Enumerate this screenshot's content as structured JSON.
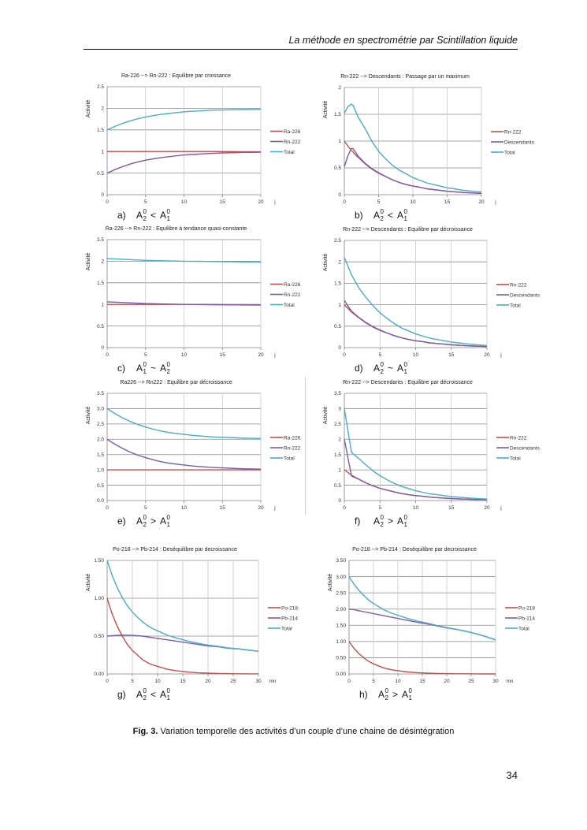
{
  "page": {
    "header": "La méthode en spectrométrie par Scintillation liquide",
    "caption_bold": "Fig. 3.",
    "caption_text": " Variation temporelle des activités d’un couple d’une chaine de désintégration",
    "page_number": "34"
  },
  "colors": {
    "parent": "#c0504d",
    "daughter": "#7d5ba6",
    "total": "#4bacc6",
    "grid": "#b0b0b0",
    "axis": "#7f7f7f"
  },
  "chart_data": [
    {
      "id": "a",
      "type": "line",
      "title": "Ra-226 --> Rn-222 : Equilibre par croissance",
      "ylabel": "Activité",
      "xlabel": "j",
      "xlim": [
        0,
        20
      ],
      "ylim": [
        0,
        2.5
      ],
      "xticks": [
        "0",
        "5",
        "10",
        "15",
        "20"
      ],
      "yticks": [
        "0",
        "0.5",
        "1",
        "1.5",
        "2",
        "2.5"
      ],
      "legend_position": "right",
      "subcaption": {
        "letter": "a)",
        "lhs_sub": "2",
        "op": "<",
        "rhs_sub": "1"
      },
      "x": [
        0,
        1,
        2,
        3,
        4,
        5,
        6,
        7,
        8,
        9,
        10,
        11,
        12,
        13,
        14,
        15,
        16,
        17,
        18,
        19,
        20
      ],
      "series": [
        {
          "name": "Ra-226",
          "role": "parent",
          "values": [
            1,
            1,
            1,
            1,
            1,
            1,
            1,
            1,
            1,
            1,
            1,
            1,
            1,
            1,
            1,
            0.995,
            0.995,
            0.99,
            0.99,
            0.99,
            0.99
          ]
        },
        {
          "name": "Rn-222",
          "role": "daughter",
          "values": [
            0.5,
            0.58,
            0.65,
            0.71,
            0.76,
            0.8,
            0.83,
            0.86,
            0.88,
            0.9,
            0.92,
            0.93,
            0.94,
            0.95,
            0.96,
            0.965,
            0.97,
            0.975,
            0.98,
            0.98,
            0.985
          ]
        },
        {
          "name": "Total",
          "role": "total",
          "values": [
            1.5,
            1.58,
            1.65,
            1.71,
            1.76,
            1.8,
            1.83,
            1.86,
            1.88,
            1.9,
            1.92,
            1.93,
            1.94,
            1.95,
            1.96,
            1.96,
            1.965,
            1.97,
            1.97,
            1.975,
            1.975
          ]
        }
      ]
    },
    {
      "id": "b",
      "type": "line",
      "title": "Rn-222 --> Descendants : Passage par un maximum",
      "ylabel": "Activité",
      "xlabel": "j",
      "xlim": [
        0,
        20
      ],
      "ylim": [
        0,
        2
      ],
      "xticks": [
        "0",
        "5",
        "10",
        "15",
        "20"
      ],
      "yticks": [
        "0",
        "0.5",
        "1",
        "1.5",
        "2"
      ],
      "legend_position": "right",
      "subcaption": {
        "letter": "b)",
        "lhs_sub": "2",
        "op": "<",
        "rhs_sub": "1"
      },
      "x": [
        0,
        0.5,
        1,
        1.25,
        1.5,
        2,
        3,
        4,
        5,
        6,
        7,
        8,
        9,
        10,
        11,
        12,
        13,
        14,
        15,
        16,
        17,
        18,
        19,
        20
      ],
      "series": [
        {
          "name": "Rn-222",
          "role": "parent",
          "values": [
            1,
            0.91,
            0.83,
            0.8,
            0.76,
            0.7,
            0.58,
            0.48,
            0.4,
            0.34,
            0.28,
            0.23,
            0.19,
            0.16,
            0.14,
            0.11,
            0.095,
            0.08,
            0.065,
            0.055,
            0.045,
            0.037,
            0.031,
            0.026
          ]
        },
        {
          "name": "Descendants",
          "role": "daughter",
          "values": [
            0.52,
            0.72,
            0.86,
            0.86,
            0.82,
            0.72,
            0.59,
            0.49,
            0.41,
            0.34,
            0.28,
            0.23,
            0.19,
            0.16,
            0.14,
            0.11,
            0.095,
            0.08,
            0.065,
            0.055,
            0.045,
            0.037,
            0.031,
            0.026
          ]
        },
        {
          "name": "Total",
          "role": "total",
          "values": [
            1.52,
            1.64,
            1.69,
            1.67,
            1.6,
            1.45,
            1.24,
            1.0,
            0.81,
            0.67,
            0.55,
            0.46,
            0.39,
            0.32,
            0.27,
            0.22,
            0.19,
            0.16,
            0.13,
            0.11,
            0.09,
            0.075,
            0.06,
            0.05
          ]
        }
      ]
    },
    {
      "id": "c",
      "type": "line",
      "title": "Ra-226 --> Rn-222 : Equilibre à tendance quasi-constante",
      "ylabel": "Activité",
      "xlabel": "j",
      "xlim": [
        0,
        20
      ],
      "ylim": [
        0,
        2.5
      ],
      "xticks": [
        "0",
        "5",
        "10",
        "15",
        "20"
      ],
      "yticks": [
        "0",
        "0.5",
        "1",
        "1.5",
        "2",
        "2.5"
      ],
      "legend_position": "right",
      "subcaption": {
        "letter": "c)",
        "lhs_sub": "1",
        "op": "~",
        "rhs_sub": "2"
      },
      "x": [
        0,
        5,
        10,
        15,
        20
      ],
      "series": [
        {
          "name": "Ra-226",
          "role": "parent",
          "values": [
            1,
            1,
            1,
            0.995,
            0.99
          ]
        },
        {
          "name": "Rn-222",
          "role": "daughter",
          "values": [
            1.06,
            1.02,
            1.0,
            0.99,
            0.985
          ]
        },
        {
          "name": "Total",
          "role": "total",
          "values": [
            2.06,
            2.02,
            2.0,
            1.99,
            1.98
          ]
        }
      ]
    },
    {
      "id": "d",
      "type": "line",
      "title": "Rn-222 --> Descendants : Equilibre par décroissance",
      "ylabel": "Activité",
      "xlabel": "j",
      "xlim": [
        0,
        20
      ],
      "ylim": [
        0,
        2.5
      ],
      "xticks": [
        "0",
        "5",
        "10",
        "15",
        "20"
      ],
      "yticks": [
        "0",
        "0.5",
        "1",
        "1.5",
        "2",
        "2.5"
      ],
      "legend_position": "right",
      "subcaption": {
        "letter": "d)",
        "lhs_sub": "2",
        "op": "~",
        "rhs_sub": "1"
      },
      "x": [
        0,
        1,
        2,
        3,
        4,
        5,
        6,
        7,
        8,
        9,
        10,
        11,
        12,
        13,
        14,
        15,
        16,
        17,
        18,
        19,
        20
      ],
      "series": [
        {
          "name": "Rn-222",
          "role": "parent",
          "values": [
            1,
            0.83,
            0.7,
            0.58,
            0.48,
            0.4,
            0.34,
            0.28,
            0.23,
            0.19,
            0.16,
            0.14,
            0.11,
            0.095,
            0.08,
            0.065,
            0.055,
            0.045,
            0.037,
            0.031,
            0.026
          ]
        },
        {
          "name": "Descendants",
          "role": "daughter",
          "values": [
            1.1,
            0.85,
            0.71,
            0.59,
            0.49,
            0.41,
            0.34,
            0.28,
            0.23,
            0.19,
            0.16,
            0.14,
            0.11,
            0.095,
            0.08,
            0.065,
            0.055,
            0.045,
            0.037,
            0.031,
            0.026
          ]
        },
        {
          "name": "Total",
          "role": "total",
          "values": [
            2.1,
            1.7,
            1.4,
            1.18,
            0.98,
            0.81,
            0.68,
            0.56,
            0.46,
            0.39,
            0.32,
            0.27,
            0.22,
            0.19,
            0.16,
            0.13,
            0.11,
            0.09,
            0.075,
            0.06,
            0.05
          ]
        }
      ]
    },
    {
      "id": "e",
      "type": "line",
      "title": "Ra226 --> Rn222 : Equilibre par décroissance",
      "ylabel": "Activité",
      "xlabel": "j",
      "xlim": [
        0,
        20
      ],
      "ylim": [
        0,
        3.5
      ],
      "xticks": [
        "0",
        "5",
        "10",
        "15",
        "20"
      ],
      "yticks": [
        "0.0",
        "0.5",
        "1.0",
        "1.5",
        "2.0",
        "2.5",
        "3.0",
        "3.5"
      ],
      "legend_position": "right",
      "subcaption": {
        "letter": "e)",
        "lhs_sub": "2",
        "op": ">",
        "rhs_sub": "1"
      },
      "x": [
        0,
        1,
        2,
        3,
        4,
        5,
        6,
        7,
        8,
        9,
        10,
        11,
        12,
        13,
        14,
        15,
        16,
        17,
        18,
        19,
        20
      ],
      "series": [
        {
          "name": "Ra-226",
          "role": "parent",
          "values": [
            1,
            1,
            1,
            1,
            1,
            1,
            1,
            1,
            1,
            1,
            1,
            1,
            1,
            1,
            1,
            1,
            1,
            1,
            1,
            1,
            1
          ]
        },
        {
          "name": "Rn-222",
          "role": "daughter",
          "values": [
            2.0,
            1.84,
            1.7,
            1.58,
            1.48,
            1.4,
            1.33,
            1.27,
            1.22,
            1.19,
            1.16,
            1.13,
            1.11,
            1.09,
            1.075,
            1.065,
            1.055,
            1.045,
            1.035,
            1.03,
            1.025
          ]
        },
        {
          "name": "Total",
          "role": "total",
          "values": [
            3.0,
            2.84,
            2.7,
            2.58,
            2.48,
            2.4,
            2.33,
            2.27,
            2.22,
            2.19,
            2.16,
            2.13,
            2.11,
            2.09,
            2.075,
            2.065,
            2.055,
            2.045,
            2.035,
            2.03,
            2.025
          ]
        }
      ]
    },
    {
      "id": "f",
      "type": "line",
      "title": "Rn-222 --> Descendants : Equilibre par décroissance",
      "ylabel": "Activité",
      "xlabel": "j",
      "xlim": [
        0,
        20
      ],
      "ylim": [
        0,
        3.5
      ],
      "xticks": [
        "0",
        "5",
        "10",
        "15",
        "20"
      ],
      "yticks": [
        "0",
        "0.5",
        "1",
        "1.5",
        "2",
        "2.5",
        "3",
        "3.5"
      ],
      "legend_position": "right",
      "subcaption": {
        "letter": "f)",
        "lhs_sub": "2",
        "op": ">",
        "rhs_sub": "1"
      },
      "x": [
        0,
        1,
        2,
        3,
        4,
        5,
        6,
        7,
        8,
        9,
        10,
        11,
        12,
        13,
        14,
        15,
        16,
        17,
        18,
        19,
        20
      ],
      "series": [
        {
          "name": "Rn-222",
          "role": "parent",
          "values": [
            1,
            0.83,
            0.7,
            0.58,
            0.48,
            0.4,
            0.34,
            0.28,
            0.23,
            0.19,
            0.16,
            0.14,
            0.11,
            0.095,
            0.08,
            0.065,
            0.055,
            0.045,
            0.037,
            0.031,
            0.026
          ]
        },
        {
          "name": "Descendants",
          "role": "daughter",
          "values": [
            2.0,
            0.8,
            0.7,
            0.58,
            0.48,
            0.4,
            0.34,
            0.28,
            0.23,
            0.19,
            0.16,
            0.14,
            0.11,
            0.095,
            0.08,
            0.065,
            0.055,
            0.045,
            0.037,
            0.031,
            0.026
          ]
        },
        {
          "name": "Total",
          "role": "total",
          "values": [
            3.0,
            1.57,
            1.38,
            1.17,
            0.97,
            0.81,
            0.68,
            0.56,
            0.46,
            0.39,
            0.32,
            0.27,
            0.22,
            0.19,
            0.16,
            0.13,
            0.11,
            0.09,
            0.075,
            0.06,
            0.05
          ]
        }
      ]
    },
    {
      "id": "g",
      "type": "line",
      "title": "Po-218 --> Pb-214 : Deséquilibre par decroissance",
      "ylabel": "Activité",
      "xlabel": "mn",
      "xlim": [
        0,
        30
      ],
      "ylim": [
        0,
        1.5
      ],
      "xticks": [
        "0",
        "5",
        "10",
        "15",
        "20",
        "25",
        "30"
      ],
      "yticks": [
        "0.00",
        "0.50",
        "1.00",
        "1.50"
      ],
      "legend_position": "right",
      "subcaption": {
        "letter": "g)",
        "lhs_sub": "2",
        "op": "<",
        "rhs_sub": "1"
      },
      "x": [
        0,
        1,
        2,
        3,
        4,
        5,
        6,
        7,
        8,
        9,
        10,
        12,
        14,
        16,
        18,
        20,
        22,
        24,
        26,
        28,
        30
      ],
      "series": [
        {
          "name": "Po-218",
          "role": "parent",
          "values": [
            1,
            0.79,
            0.63,
            0.5,
            0.39,
            0.31,
            0.25,
            0.19,
            0.15,
            0.12,
            0.1,
            0.06,
            0.04,
            0.025,
            0.015,
            0.01,
            0.006,
            0.004,
            0.002,
            0.001,
            0.001
          ]
        },
        {
          "name": "Pb-214",
          "role": "daughter",
          "values": [
            0.5,
            0.505,
            0.51,
            0.512,
            0.512,
            0.51,
            0.505,
            0.5,
            0.49,
            0.48,
            0.47,
            0.45,
            0.43,
            0.41,
            0.39,
            0.37,
            0.36,
            0.34,
            0.33,
            0.315,
            0.3
          ]
        },
        {
          "name": "Total",
          "role": "total",
          "values": [
            1.5,
            1.3,
            1.14,
            1.01,
            0.9,
            0.82,
            0.75,
            0.69,
            0.64,
            0.6,
            0.57,
            0.51,
            0.47,
            0.435,
            0.405,
            0.38,
            0.366,
            0.344,
            0.332,
            0.316,
            0.3
          ]
        }
      ]
    },
    {
      "id": "h",
      "type": "line",
      "title": "Po-218 --> Pb-214 : Deséquilibre par decroissance",
      "ylabel": "Activité",
      "xlabel": "mn",
      "xlim": [
        0,
        30
      ],
      "ylim": [
        0,
        3.5
      ],
      "xticks": [
        "0",
        "5",
        "10",
        "15",
        "20",
        "25",
        "30"
      ],
      "yticks": [
        "0.00",
        "0.50",
        "1.00",
        "1.50",
        "2.00",
        "2.50",
        "3.00",
        "3.50"
      ],
      "legend_position": "right",
      "subcaption": {
        "letter": "h)",
        "lhs_sub": "2",
        "op": ">",
        "rhs_sub": "1"
      },
      "x": [
        0,
        1,
        2,
        3,
        4,
        5,
        6,
        7,
        8,
        9,
        10,
        12,
        14,
        16,
        18,
        20,
        22,
        24,
        26,
        28,
        30
      ],
      "series": [
        {
          "name": "Po-218",
          "role": "parent",
          "values": [
            1,
            0.79,
            0.63,
            0.5,
            0.39,
            0.31,
            0.25,
            0.19,
            0.15,
            0.12,
            0.1,
            0.06,
            0.04,
            0.025,
            0.015,
            0.01,
            0.006,
            0.004,
            0.002,
            0.001,
            0.001
          ]
        },
        {
          "name": "Pb-214",
          "role": "daughter",
          "values": [
            2.0,
            1.98,
            1.95,
            1.92,
            1.89,
            1.86,
            1.83,
            1.8,
            1.77,
            1.74,
            1.71,
            1.65,
            1.59,
            1.54,
            1.48,
            1.42,
            1.37,
            1.31,
            1.24,
            1.15,
            1.05
          ]
        },
        {
          "name": "Total",
          "role": "total",
          "values": [
            3.0,
            2.77,
            2.58,
            2.42,
            2.28,
            2.17,
            2.08,
            1.99,
            1.92,
            1.86,
            1.81,
            1.71,
            1.63,
            1.565,
            1.495,
            1.43,
            1.376,
            1.314,
            1.242,
            1.151,
            1.051
          ]
        }
      ]
    }
  ]
}
